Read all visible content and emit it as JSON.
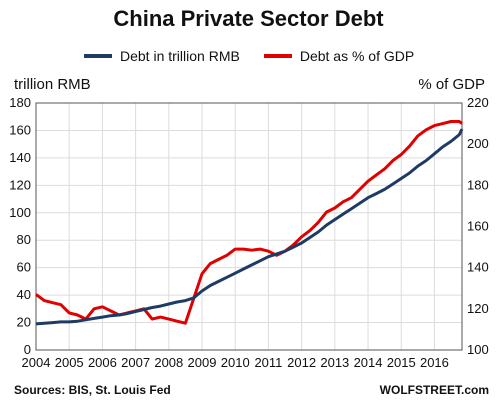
{
  "colors": {
    "series1": "#1f3b63",
    "series2": "#e00000",
    "grid": "#dcdcdc"
  },
  "footer": {
    "source": "Sources: BIS, St. Louis Fed",
    "brand": "WOLFSTREET.com"
  },
  "chart_data": {
    "type": "line",
    "title": "China Private Sector Debt",
    "ylabel_left": "trillion RMB",
    "ylabel_right": "% of GDP",
    "xlabel": "",
    "grid": true,
    "legend_position": "top",
    "xlim": [
      2004,
      2016.83
    ],
    "ylim_left": [
      0,
      180
    ],
    "ylim_right": [
      100,
      220
    ],
    "x_ticks": [
      "2004",
      "2005",
      "2006",
      "2007",
      "2008",
      "2009",
      "2010",
      "2011",
      "2012",
      "2013",
      "2014",
      "2015",
      "2016"
    ],
    "y_ticks_left": [
      "0",
      "20",
      "40",
      "60",
      "80",
      "100",
      "120",
      "140",
      "160",
      "180"
    ],
    "y_ticks_right": [
      "100",
      "120",
      "140",
      "160",
      "180",
      "200",
      "220"
    ],
    "series": [
      {
        "name": "Debt in trillion RMB",
        "axis": "left",
        "points": [
          [
            2004.0,
            19
          ],
          [
            2004.25,
            19.5
          ],
          [
            2004.5,
            20
          ],
          [
            2004.75,
            20.5
          ],
          [
            2005.0,
            20.5
          ],
          [
            2005.25,
            21
          ],
          [
            2005.5,
            22
          ],
          [
            2005.75,
            23
          ],
          [
            2006.0,
            24
          ],
          [
            2006.25,
            25
          ],
          [
            2006.5,
            25.5
          ],
          [
            2006.75,
            26.5
          ],
          [
            2007.0,
            28
          ],
          [
            2007.25,
            29.5
          ],
          [
            2007.5,
            31
          ],
          [
            2007.75,
            32
          ],
          [
            2008.0,
            33.5
          ],
          [
            2008.25,
            35
          ],
          [
            2008.5,
            36
          ],
          [
            2008.75,
            38
          ],
          [
            2009.0,
            43
          ],
          [
            2009.25,
            47
          ],
          [
            2009.5,
            50
          ],
          [
            2009.75,
            53
          ],
          [
            2010.0,
            56
          ],
          [
            2010.25,
            59
          ],
          [
            2010.5,
            62
          ],
          [
            2010.75,
            65
          ],
          [
            2011.0,
            68
          ],
          [
            2011.25,
            70
          ],
          [
            2011.5,
            72
          ],
          [
            2011.75,
            75
          ],
          [
            2012.0,
            78
          ],
          [
            2012.25,
            82
          ],
          [
            2012.5,
            86
          ],
          [
            2012.75,
            91
          ],
          [
            2013.0,
            95
          ],
          [
            2013.25,
            99
          ],
          [
            2013.5,
            103
          ],
          [
            2013.75,
            107
          ],
          [
            2014.0,
            111
          ],
          [
            2014.25,
            114
          ],
          [
            2014.5,
            117
          ],
          [
            2014.75,
            121
          ],
          [
            2015.0,
            125
          ],
          [
            2015.25,
            129
          ],
          [
            2015.5,
            134
          ],
          [
            2015.75,
            138
          ],
          [
            2016.0,
            143
          ],
          [
            2016.25,
            148
          ],
          [
            2016.5,
            152
          ],
          [
            2016.75,
            157
          ],
          [
            2016.83,
            161
          ]
        ]
      },
      {
        "name": "Debt as % of GDP",
        "axis": "right",
        "points": [
          [
            2004.0,
            127
          ],
          [
            2004.25,
            124
          ],
          [
            2004.5,
            123
          ],
          [
            2004.75,
            122
          ],
          [
            2005.0,
            118
          ],
          [
            2005.25,
            117
          ],
          [
            2005.5,
            115
          ],
          [
            2005.75,
            120
          ],
          [
            2006.0,
            121
          ],
          [
            2006.25,
            119
          ],
          [
            2006.5,
            117
          ],
          [
            2006.75,
            118
          ],
          [
            2007.0,
            119
          ],
          [
            2007.25,
            120
          ],
          [
            2007.5,
            115
          ],
          [
            2007.75,
            116
          ],
          [
            2008.0,
            115
          ],
          [
            2008.25,
            114
          ],
          [
            2008.5,
            113
          ],
          [
            2008.75,
            125
          ],
          [
            2009.0,
            137
          ],
          [
            2009.25,
            142
          ],
          [
            2009.5,
            144
          ],
          [
            2009.75,
            146
          ],
          [
            2010.0,
            149
          ],
          [
            2010.25,
            149
          ],
          [
            2010.5,
            148.5
          ],
          [
            2010.75,
            149
          ],
          [
            2011.0,
            148
          ],
          [
            2011.25,
            146
          ],
          [
            2011.5,
            148
          ],
          [
            2011.75,
            151
          ],
          [
            2012.0,
            155
          ],
          [
            2012.25,
            158
          ],
          [
            2012.5,
            162
          ],
          [
            2012.75,
            167
          ],
          [
            2013.0,
            169
          ],
          [
            2013.25,
            172
          ],
          [
            2013.5,
            174
          ],
          [
            2013.75,
            178
          ],
          [
            2014.0,
            182
          ],
          [
            2014.25,
            185
          ],
          [
            2014.5,
            188
          ],
          [
            2014.75,
            192
          ],
          [
            2015.0,
            195
          ],
          [
            2015.25,
            199
          ],
          [
            2015.5,
            204
          ],
          [
            2015.75,
            207
          ],
          [
            2016.0,
            209
          ],
          [
            2016.25,
            210
          ],
          [
            2016.5,
            211
          ],
          [
            2016.75,
            211
          ],
          [
            2016.83,
            210
          ]
        ]
      }
    ]
  }
}
